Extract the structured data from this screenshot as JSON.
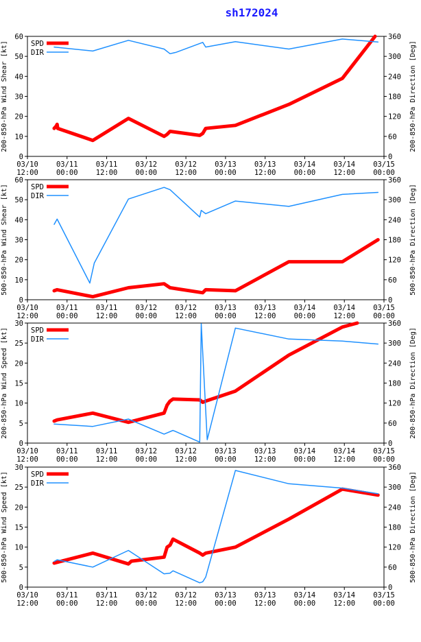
{
  "title": "sh172024",
  "colors": {
    "spd": "#ff0000",
    "dir": "#1e90ff",
    "axis": "#000000"
  },
  "chart_data": [
    {
      "type": "line",
      "ylabel_left": "200-850-hPa Wind Shear [kt]",
      "ylabel_right": "200-850-hPa Direction [Deg]",
      "ylim_left": [
        0,
        60
      ],
      "yticks_left": [
        "0",
        "10",
        "20",
        "30",
        "40",
        "50",
        "60"
      ],
      "ylim_right": [
        0,
        360
      ],
      "yticks_right": [
        "0",
        "60",
        "120",
        "180",
        "240",
        "300",
        "360"
      ],
      "xlim": [
        0,
        120
      ],
      "xticks": [
        [
          "03/10",
          "12:00"
        ],
        [
          "03/11",
          "00:00"
        ],
        [
          "03/11",
          "12:00"
        ],
        [
          "03/12",
          "00:00"
        ],
        [
          "03/12",
          "12:00"
        ],
        [
          "03/13",
          "00:00"
        ],
        [
          "03/13",
          "12:00"
        ],
        [
          "03/14",
          "00:00"
        ],
        [
          "03/14",
          "12:00"
        ],
        [
          "03/15",
          "00:00"
        ]
      ],
      "legend": [
        "SPD",
        "DIR"
      ],
      "series": [
        {
          "name": "SPD",
          "axis": "left",
          "points": [
            [
              9,
              14
            ],
            [
              9.6,
              15
            ],
            [
              10,
              16
            ],
            [
              10.2,
              14
            ],
            [
              22,
              8
            ],
            [
              34,
              19
            ],
            [
              46,
              10
            ],
            [
              47,
              11
            ],
            [
              48,
              12.5
            ],
            [
              58,
              10.5
            ],
            [
              59,
              11.5
            ],
            [
              60,
              14
            ],
            [
              70,
              15.5
            ],
            [
              88,
              26
            ],
            [
              106,
              39
            ],
            [
              117,
              60
            ]
          ]
        },
        {
          "name": "DIR",
          "axis": "right",
          "points": [
            [
              9,
              328
            ],
            [
              22,
              316
            ],
            [
              34,
              348
            ],
            [
              46,
              322
            ],
            [
              48,
              308
            ],
            [
              50,
              312
            ],
            [
              59,
              342
            ],
            [
              60,
              328
            ],
            [
              70,
              344
            ],
            [
              88,
              322
            ],
            [
              106,
              352
            ],
            [
              118,
              343
            ]
          ]
        }
      ]
    },
    {
      "type": "line",
      "ylabel_left": "500-850-hPa Wind Shear [kt]",
      "ylabel_right": "500-850-hPa Direction [Deg]",
      "ylim_left": [
        0,
        60
      ],
      "yticks_left": [
        "0",
        "10",
        "20",
        "30",
        "40",
        "50",
        "60"
      ],
      "ylim_right": [
        0,
        360
      ],
      "yticks_right": [
        "0",
        "60",
        "120",
        "180",
        "240",
        "300",
        "360"
      ],
      "xlim": [
        0,
        120
      ],
      "xticks": [
        [
          "03/10",
          "12:00"
        ],
        [
          "03/11",
          "00:00"
        ],
        [
          "03/11",
          "12:00"
        ],
        [
          "03/12",
          "00:00"
        ],
        [
          "03/12",
          "12:00"
        ],
        [
          "03/13",
          "00:00"
        ],
        [
          "03/13",
          "12:00"
        ],
        [
          "03/14",
          "00:00"
        ],
        [
          "03/14",
          "12:00"
        ],
        [
          "03/15",
          "00:00"
        ]
      ],
      "legend": [
        "SPD",
        "DIR"
      ],
      "series": [
        {
          "name": "SPD",
          "axis": "left",
          "points": [
            [
              9,
              4.5
            ],
            [
              10,
              5
            ],
            [
              22,
              1.5
            ],
            [
              34,
              6
            ],
            [
              46,
              8
            ],
            [
              48,
              6
            ],
            [
              59,
              3.5
            ],
            [
              60,
              5
            ],
            [
              70,
              4.5
            ],
            [
              88,
              19
            ],
            [
              106,
              19
            ],
            [
              118,
              30
            ]
          ]
        },
        {
          "name": "DIR",
          "axis": "right",
          "points": [
            [
              9,
              226
            ],
            [
              10,
              242
            ],
            [
              21,
              50
            ],
            [
              22.5,
              110
            ],
            [
              34,
              302
            ],
            [
              46,
              337
            ],
            [
              48,
              330
            ],
            [
              58,
              248
            ],
            [
              58.5,
              268
            ],
            [
              60,
              258
            ],
            [
              70,
              296
            ],
            [
              88,
              280
            ],
            [
              106,
              316
            ],
            [
              118,
              322
            ]
          ]
        }
      ]
    },
    {
      "type": "line",
      "ylabel_left": "200-850-hPa Wind Speed [kt]",
      "ylabel_right": "200-850-hPa Direction [Deg]",
      "ylim_left": [
        0,
        30
      ],
      "yticks_left": [
        "0",
        "5",
        "10",
        "15",
        "20",
        "25",
        "30"
      ],
      "ylim_right": [
        0,
        360
      ],
      "yticks_right": [
        "0",
        "60",
        "120",
        "180",
        "240",
        "300",
        "360"
      ],
      "xlim": [
        0,
        120
      ],
      "xticks": [
        [
          "03/10",
          "12:00"
        ],
        [
          "03/11",
          "00:00"
        ],
        [
          "03/11",
          "12:00"
        ],
        [
          "03/12",
          "00:00"
        ],
        [
          "03/12",
          "12:00"
        ],
        [
          "03/13",
          "00:00"
        ],
        [
          "03/13",
          "12:00"
        ],
        [
          "03/14",
          "00:00"
        ],
        [
          "03/14",
          "12:00"
        ],
        [
          "03/15",
          "00:00"
        ]
      ],
      "legend": [
        "SPD",
        "DIR"
      ],
      "series": [
        {
          "name": "SPD",
          "axis": "left",
          "points": [
            [
              9,
              5.5
            ],
            [
              10,
              5.8
            ],
            [
              22,
              7.5
            ],
            [
              34,
              5.2
            ],
            [
              46,
              7.5
            ],
            [
              47,
              9.5
            ],
            [
              48,
              10.5
            ],
            [
              49,
              11
            ],
            [
              58,
              10.8
            ],
            [
              59,
              10.2
            ],
            [
              60,
              10.5
            ],
            [
              70,
              13
            ],
            [
              88,
              22
            ],
            [
              106,
              29
            ],
            [
              111,
              30
            ]
          ]
        },
        {
          "name": "DIR",
          "axis": "right",
          "points": [
            [
              9,
              57
            ],
            [
              22,
              50
            ],
            [
              34,
              72
            ],
            [
              46,
              27
            ],
            [
              49,
              38
            ],
            [
              58,
              3
            ],
            [
              58.5,
              358
            ],
            [
              60.5,
              10
            ],
            [
              70,
              345
            ],
            [
              88,
              312
            ],
            [
              106,
              306
            ],
            [
              118,
              297
            ]
          ]
        }
      ]
    },
    {
      "type": "line",
      "ylabel_left": "500-850-hPa Wind Speed [kt]",
      "ylabel_right": "500-850-hPa Direction [Deg]",
      "ylim_left": [
        0,
        30
      ],
      "yticks_left": [
        "0",
        "5",
        "10",
        "15",
        "20",
        "25",
        "30"
      ],
      "ylim_right": [
        0,
        360
      ],
      "yticks_right": [
        "0",
        "60",
        "120",
        "180",
        "240",
        "300",
        "360"
      ],
      "xlim": [
        0,
        120
      ],
      "xticks": [
        [
          "03/10",
          "12:00"
        ],
        [
          "03/11",
          "00:00"
        ],
        [
          "03/11",
          "12:00"
        ],
        [
          "03/12",
          "00:00"
        ],
        [
          "03/12",
          "12:00"
        ],
        [
          "03/13",
          "00:00"
        ],
        [
          "03/13",
          "12:00"
        ],
        [
          "03/14",
          "00:00"
        ],
        [
          "03/14",
          "12:00"
        ],
        [
          "03/15",
          "00:00"
        ]
      ],
      "legend": [
        "SPD",
        "DIR"
      ],
      "series": [
        {
          "name": "SPD",
          "axis": "left",
          "points": [
            [
              9,
              6
            ],
            [
              10,
              6.2
            ],
            [
              22,
              8.5
            ],
            [
              34,
              5.8
            ],
            [
              35,
              6.5
            ],
            [
              46,
              7.5
            ],
            [
              47,
              10
            ],
            [
              48,
              10.5
            ],
            [
              49,
              12
            ],
            [
              58,
              8.5
            ],
            [
              59,
              8
            ],
            [
              60,
              8.5
            ],
            [
              70,
              10
            ],
            [
              88,
              17
            ],
            [
              106,
              24.5
            ],
            [
              118,
              23
            ]
          ]
        },
        {
          "name": "DIR",
          "axis": "right",
          "points": [
            [
              9,
              77
            ],
            [
              10,
              82
            ],
            [
              22,
              60
            ],
            [
              34,
              110
            ],
            [
              46,
              40
            ],
            [
              48,
              42
            ],
            [
              49,
              49
            ],
            [
              58,
              13
            ],
            [
              59,
              16
            ],
            [
              60,
              30
            ],
            [
              70,
              350
            ],
            [
              88,
              310
            ],
            [
              106,
              297
            ],
            [
              118,
              280
            ]
          ]
        }
      ]
    }
  ]
}
